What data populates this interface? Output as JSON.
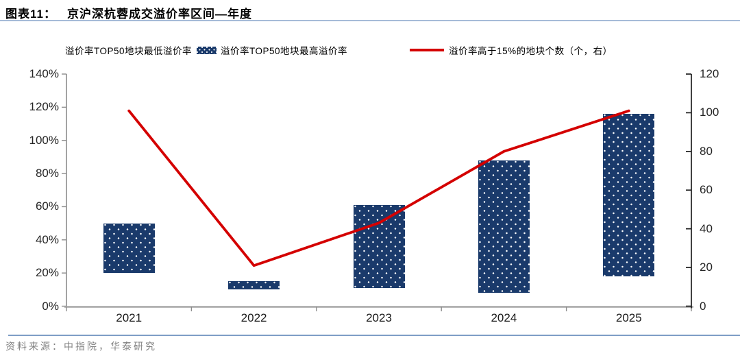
{
  "header": {
    "figure_label": "图表11：",
    "title": "京沪深杭蓉成交溢价率区间—年度"
  },
  "legend": [
    {
      "label": "溢价率TOP50地块最低溢价率",
      "marker": "hidden-box"
    },
    {
      "label": "溢价率TOP50地块最高溢价率",
      "marker": "dotted-navy-bar"
    },
    {
      "label": "溢价率高于15%的地块个数（个，右）",
      "marker": "red-line"
    }
  ],
  "chart_data": {
    "type": "bar",
    "subtype": "floating-range-bars-with-line",
    "title": "京沪深杭蓉成交溢价率区间—年度",
    "categories": [
      "2021",
      "2022",
      "2023",
      "2024",
      "2025"
    ],
    "series": [
      {
        "name": "溢价率TOP50地块最低溢价率",
        "role": "range_min",
        "axis": "left",
        "unit": "%",
        "values": [
          20,
          10,
          11,
          8,
          18
        ]
      },
      {
        "name": "溢价率TOP50地块最高溢价率",
        "role": "range_max",
        "axis": "left",
        "unit": "%",
        "values": [
          50,
          15,
          61,
          88,
          116
        ]
      },
      {
        "name": "溢价率高于15%的地块个数（个，右）",
        "role": "line",
        "axis": "right",
        "unit": "个",
        "values": [
          101,
          21,
          43,
          80,
          101
        ]
      }
    ],
    "left_axis": {
      "min": 0,
      "max": 140,
      "step": 20,
      "unit": "%",
      "ticks": [
        "0%",
        "20%",
        "40%",
        "60%",
        "80%",
        "100%",
        "120%",
        "140%"
      ]
    },
    "right_axis": {
      "min": 0,
      "max": 120,
      "step": 20,
      "unit": "",
      "ticks": [
        "0",
        "20",
        "40",
        "60",
        "80",
        "100",
        "120"
      ]
    },
    "grid": false,
    "legend_position": "top",
    "colors": {
      "bar": "#1A3A6B",
      "line": "#D40000",
      "title_underline": "#A6BBD8",
      "footer_divider": "#7E9EC6",
      "axis_left": "#8C8C8C",
      "axis_right": "#1F1F1F"
    }
  },
  "footer": {
    "source": "资料来源：中指院，华泰研究"
  }
}
